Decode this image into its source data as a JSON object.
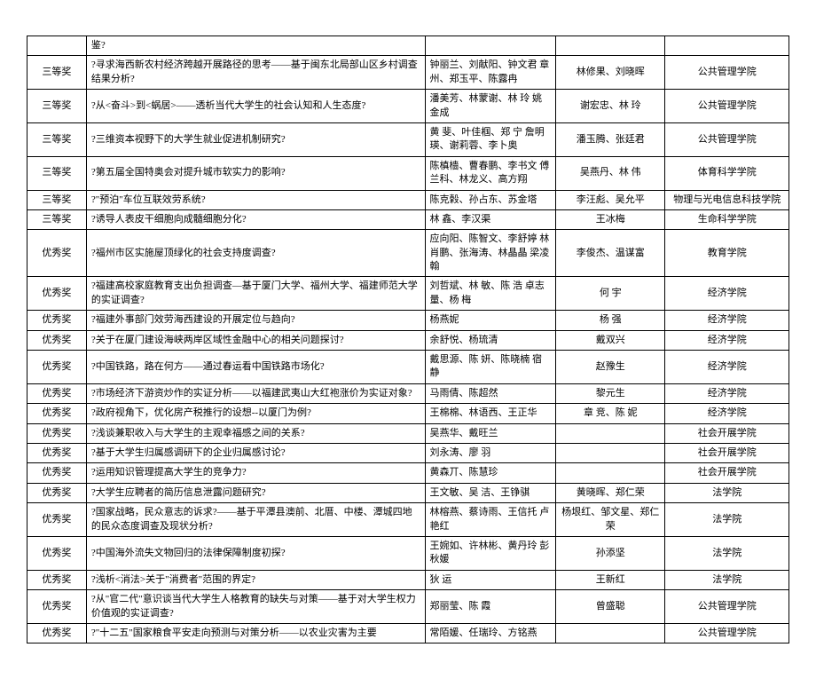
{
  "table": {
    "columns": [
      "award",
      "topic",
      "students",
      "teachers",
      "college"
    ],
    "col_classes": [
      "col-award",
      "col-topic",
      "col-students",
      "col-teachers",
      "col-college"
    ],
    "rows": [
      [
        "",
        "鉴?",
        "",
        "",
        ""
      ],
      [
        "三等奖",
        "?寻求海西新农村经济跨越开展路径的思考——基于闽东北局部山区乡村调查结果分析?",
        "钟丽兰、刘献阳、钟文君 章  州、郑玉平、陈露冉",
        "林修果、刘晓晖",
        "公共管理学院"
      ],
      [
        "三等奖",
        "?从<奋斗>到<蜗居>——透析当代大学生的社会认知和人生态度?",
        "潘美芳、林蒙谢、林  玲 姚金成",
        "谢宏忠、林  玲",
        "公共管理学院"
      ],
      [
        "三等奖",
        "?三维资本视野下的大学生就业促进机制研究?",
        "黄  斐、叶佳椢、郑  宁 詹明瑛、谢莉蓉、李卜奥",
        "潘玉腾、张廷君",
        "公共管理学院"
      ],
      [
        "三等奖",
        "?第五届全国特奥会对提升城市软实力的影响?",
        "陈槙樯、曹春鹏、李书文 傅兰科、林龙义、高方翔",
        "吴燕丹、林 伟",
        "体育科学学院"
      ],
      [
        "三等奖",
        "?\"预泊\"车位互联效劳系统?",
        "陈克榖、孙占东、苏金塔",
        "李汪彪、吴允平",
        "物理与光电信息科技学院"
      ],
      [
        "三等奖",
        "?诱导人表皮干细胞向成髓细胞分化?",
        "林  鑫、李汉渠",
        "王冰梅",
        "生命科学学院"
      ],
      [
        "优秀奖",
        "?福州市区实施屋顶绿化的社会支持度调查?",
        "应向阳、陈智文、李舒婷 林肖鹏、张海涛、林晶晶 梁凌翰",
        "李俊杰、温谋富",
        "教育学院"
      ],
      [
        "优秀奖",
        "?福建高校家庭教育支出负担调查—基于厦门大学、福州大学、福建师范大学的实证调查?",
        "刘哲斌、林  敏、陈  浩 卓志量、杨  梅",
        "何  宇",
        "经济学院"
      ],
      [
        "优秀奖",
        "?福建外事部门效劳海西建设的开展定位与趋向?",
        "杨燕妮",
        "杨  强",
        "经济学院"
      ],
      [
        "优秀奖",
        "?关于在厦门建设海峡两岸区域性金融中心的相关问题探讨?",
        "余舒悦、杨琉清",
        "戴双兴",
        "经济学院"
      ],
      [
        "优秀奖",
        "?中国铁路，路在何方——通过春运看中国铁路市场化?",
        "戴思源、陈  妍、陈晓楠 宿  静",
        "赵豫生",
        "经济学院"
      ],
      [
        "优秀奖",
        "?市场经济下游资炒作的实证分析——以福建武夷山大红袍涨价为实证对象?",
        "马雨倩、陈超然",
        "黎元生",
        "经济学院"
      ],
      [
        "优秀奖",
        "?政府视角下，优化房产税推行的设想--以厦门为例?",
        "王棉棉、林语西、王正华",
        "章  竞、陈  妮",
        "经济学院"
      ],
      [
        "优秀奖",
        "?浅谈兼职收入与大学生的主观幸福感之间的关系?",
        "吴燕华、戴旺兰",
        "",
        "社会开展学院"
      ],
      [
        "优秀奖",
        "?基于大学生归属感调研下的企业归属感讨论?",
        "刘永涛、廖  羽",
        "",
        "社会开展学院"
      ],
      [
        "优秀奖",
        "?运用知识管理提高大学生的竞争力?",
        "黄森丌、陈慧珍",
        "",
        "社会开展学院"
      ],
      [
        "优秀奖",
        "?大学生应聘者的简历信息泄露问题研究?",
        "王文敏、吴  洁、王铮骐",
        "黄晓晖、郑仁荣",
        "法学院"
      ],
      [
        "优秀奖",
        "?国家战略，民众意志的诉求?——基于平潭县澳前、北厝、中楼、潭城四地的民众态度调查及现状分析?",
        "林榕燕、蔡诗雨、王信托 卢艳红",
        "杨垠红、邹文星、郑仁荣",
        "法学院"
      ],
      [
        "优秀奖",
        "?中国海外流失文物回归的法律保障制度初探?",
        "王婉如、许林彬、黄丹玲 彭秋媛",
        "孙添坚",
        "法学院"
      ],
      [
        "优秀奖",
        "?浅析<消法>关于\"消费者\"范围的界定?",
        "狄  运",
        "王新红",
        "法学院"
      ],
      [
        "优秀奖",
        "?从\"官二代\"意识谈当代大学生人格教育的缺失与对策——基于对大学生权力价值观的实证调查?",
        "郑丽莹、陈  霞",
        "曾盛聪",
        "公共管理学院"
      ],
      [
        "优秀奖",
        "?\"十二五\"国家粮食平安走向预测与对策分析——以农业灾害为主要",
        "常陌媛、任瑞玲、方铭燕",
        "",
        "公共管理学院"
      ]
    ]
  }
}
